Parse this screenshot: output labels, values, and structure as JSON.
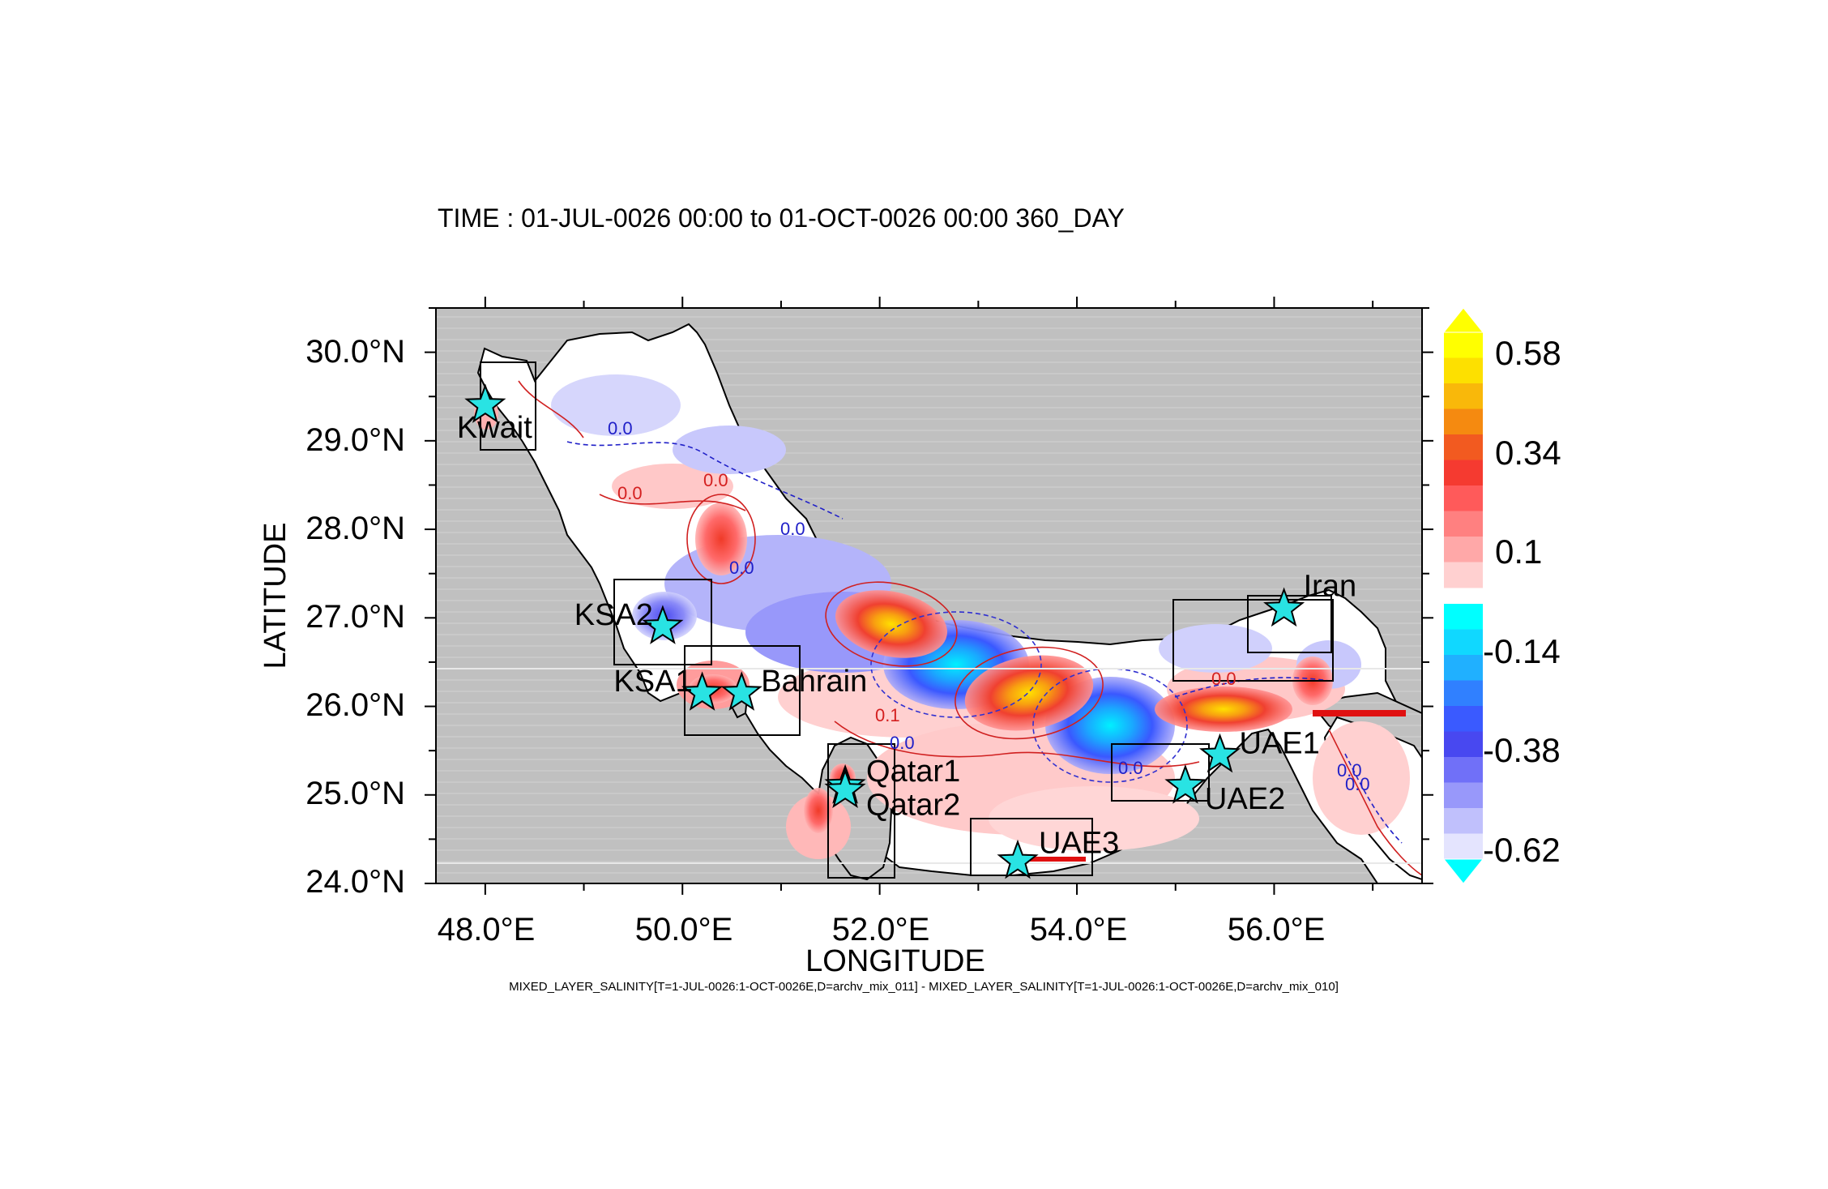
{
  "plot": {
    "title": "TIME : 01-JUL-0026 00:00 to 01-OCT-0026 00:00 360_DAY",
    "xlabel": "LONGITUDE",
    "ylabel": "LATITUDE",
    "footnote": "MIXED_LAYER_SALINITY[T=1-JUL-0026:1-OCT-0026E,D=archv_mix_011] - MIXED_LAYER_SALINITY[T=1-JUL-0026:1-OCT-0026E,D=archv_mix_010]",
    "x_ticks": [
      "48.0°E",
      "50.0°E",
      "52.0°E",
      "54.0°E",
      "56.0°E"
    ],
    "y_ticks": [
      "30.0°N",
      "29.0°N",
      "28.0°N",
      "27.0°N",
      "26.0°N",
      "25.0°N",
      "24.0°N"
    ],
    "xlim": [
      47.5,
      57.5
    ],
    "ylim": [
      24.0,
      30.5
    ],
    "land_color": "#c0c0c0"
  },
  "colorbar": {
    "labels": [
      "0.58",
      "0.34",
      "0.1",
      "-0.14",
      "-0.38",
      "-0.62"
    ],
    "positive_colors": [
      "#ffd0d0",
      "#ffa8a8",
      "#ff8080",
      "#ff5a5a",
      "#f53a30",
      "#f25a20",
      "#f58a10",
      "#f9b80a",
      "#fde000",
      "#ffff00"
    ],
    "negative_colors": [
      "#00ffff",
      "#10d8ff",
      "#20b0ff",
      "#3080ff",
      "#3a5aff",
      "#4848f0",
      "#7070f8",
      "#9898fa",
      "#c0c0fc",
      "#e4e4fe"
    ]
  },
  "contour_labels": [
    {
      "text": "0.0",
      "color": "blue"
    },
    {
      "text": "0.0",
      "color": "red"
    },
    {
      "text": "0.0",
      "color": "red"
    },
    {
      "text": "0.0",
      "color": "blue"
    },
    {
      "text": "0.0",
      "color": "blue"
    },
    {
      "text": "0.1",
      "color": "red"
    },
    {
      "text": "0.0",
      "color": "blue"
    },
    {
      "text": "0.0",
      "color": "blue"
    },
    {
      "text": "0.0",
      "color": "red"
    },
    {
      "text": "0.0",
      "color": "blue"
    },
    {
      "text": "0.0",
      "color": "blue"
    }
  ],
  "stations": [
    {
      "name": "Kwait",
      "lon": 48.0,
      "lat": 29.4
    },
    {
      "name": "KSA2",
      "lon": 49.8,
      "lat": 26.9
    },
    {
      "name": "KSA1",
      "lon": 50.2,
      "lat": 26.15
    },
    {
      "name": "Bahrain",
      "lon": 50.6,
      "lat": 26.15
    },
    {
      "name": "Qatar1",
      "lon": 51.65,
      "lat": 25.1
    },
    {
      "name": "Qatar2",
      "lon": 51.65,
      "lat": 25.05
    },
    {
      "name": "UAE3",
      "lon": 53.4,
      "lat": 24.25
    },
    {
      "name": "UAE2",
      "lon": 55.1,
      "lat": 25.1
    },
    {
      "name": "UAE1",
      "lon": 55.45,
      "lat": 25.45
    },
    {
      "name": "Iran",
      "lon": 56.1,
      "lat": 27.1
    }
  ]
}
